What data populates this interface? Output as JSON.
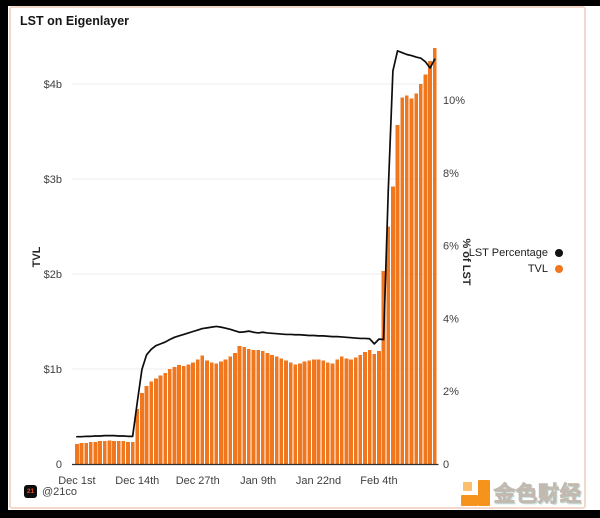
{
  "page": {
    "background": "#000000",
    "card_background": "#ffffff",
    "card_border_color": "#f2d8ca"
  },
  "card": {
    "title": "LST on Eigenlayer"
  },
  "legend": [
    {
      "label": "LST Percentage",
      "color": "#111111",
      "marker": "circle"
    },
    {
      "label": "TVL",
      "color": "#f1771f",
      "marker": "circle"
    }
  ],
  "attribution": {
    "icon_text": "21",
    "handle": "@21co"
  },
  "watermark": {
    "text": "金色财经",
    "logo": "jinse-finance-logo",
    "logo_color": "#f5931c"
  },
  "chart_data": {
    "type": "bar",
    "subtype": "bar-with-line-overlay",
    "title": "LST on Eigenlayer",
    "frequency": "daily",
    "x_tick_labels": [
      "Dec 1st",
      "Dec 14th",
      "Dec 27th",
      "Jan 9th",
      "Jan 22nd",
      "Feb 4th"
    ],
    "x_tick_indices": [
      0,
      13,
      26,
      39,
      52,
      65
    ],
    "left_axis": {
      "label": "TVL",
      "ticks": [
        "0",
        "$1b",
        "$2b",
        "$3b",
        "$4b"
      ],
      "tick_values": [
        0,
        1,
        2,
        3,
        4
      ],
      "ylim": [
        0,
        4.4
      ],
      "unit": "$ billions"
    },
    "right_axis": {
      "label": "% of LST",
      "ticks": [
        "0",
        "2%",
        "4%",
        "6%",
        "8%",
        "10%"
      ],
      "tick_values": [
        0,
        2,
        4,
        6,
        8,
        10
      ],
      "ylim": [
        0,
        11.5
      ],
      "unit": "%"
    },
    "grid": "horizontal-left-axis-only",
    "legend_position": "right-middle",
    "series": [
      {
        "name": "TVL",
        "type": "bar",
        "axis": "left",
        "color": "#f1771f",
        "unit": "$b",
        "values": [
          0.21,
          0.22,
          0.22,
          0.23,
          0.23,
          0.24,
          0.24,
          0.25,
          0.24,
          0.24,
          0.24,
          0.23,
          0.23,
          0.58,
          0.75,
          0.82,
          0.87,
          0.9,
          0.93,
          0.96,
          1.0,
          1.02,
          1.04,
          1.03,
          1.05,
          1.07,
          1.1,
          1.14,
          1.09,
          1.07,
          1.06,
          1.08,
          1.1,
          1.13,
          1.17,
          1.24,
          1.23,
          1.21,
          1.2,
          1.2,
          1.19,
          1.17,
          1.15,
          1.13,
          1.11,
          1.09,
          1.07,
          1.05,
          1.06,
          1.08,
          1.09,
          1.1,
          1.1,
          1.09,
          1.07,
          1.06,
          1.1,
          1.13,
          1.11,
          1.1,
          1.12,
          1.15,
          1.18,
          1.2,
          1.16,
          1.19,
          2.03,
          2.5,
          2.92,
          3.57,
          3.86,
          3.88,
          3.85,
          3.9,
          4.0,
          4.1,
          4.24,
          4.38
        ]
      },
      {
        "name": "LST Percentage",
        "type": "line",
        "axis": "right",
        "color": "#0d0d0d",
        "unit": "%",
        "values": [
          0.75,
          0.75,
          0.76,
          0.76,
          0.77,
          0.77,
          0.78,
          0.78,
          0.78,
          0.77,
          0.77,
          0.76,
          0.76,
          1.7,
          2.6,
          3.0,
          3.15,
          3.25,
          3.3,
          3.35,
          3.42,
          3.48,
          3.52,
          3.56,
          3.6,
          3.64,
          3.68,
          3.72,
          3.74,
          3.76,
          3.78,
          3.76,
          3.73,
          3.7,
          3.66,
          3.62,
          3.63,
          3.65,
          3.62,
          3.6,
          3.62,
          3.6,
          3.59,
          3.58,
          3.57,
          3.56,
          3.56,
          3.55,
          3.55,
          3.54,
          3.53,
          3.53,
          3.52,
          3.52,
          3.51,
          3.5,
          3.5,
          3.49,
          3.48,
          3.47,
          3.46,
          3.45,
          3.45,
          3.44,
          3.3,
          3.43,
          3.42,
          7.5,
          10.8,
          11.35,
          11.3,
          11.25,
          11.22,
          11.18,
          11.15,
          11.05,
          10.88,
          11.12
        ]
      }
    ]
  }
}
